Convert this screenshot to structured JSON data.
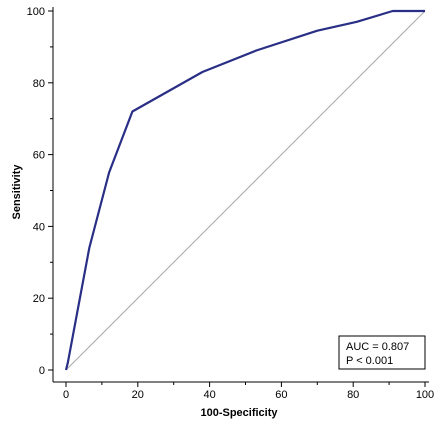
{
  "chart_data": {
    "type": "line",
    "xlabel": "100-Specificity",
    "ylabel": "Sensitivity",
    "xlim": [
      0,
      100
    ],
    "ylim": [
      0,
      100
    ],
    "x_ticks": [
      0,
      20,
      40,
      60,
      80,
      100
    ],
    "y_ticks": [
      0,
      20,
      40,
      60,
      80,
      100
    ],
    "grid": false,
    "series": [
      {
        "color": "#2a2f86",
        "x": [
          0,
          0.5,
          6.5,
          12,
          18.5,
          38,
          53,
          70,
          81,
          91,
          100
        ],
        "y": [
          0,
          2,
          34,
          55,
          72,
          83,
          89,
          94.5,
          97,
          100,
          100
        ]
      }
    ],
    "reference_line": {
      "x": [
        0,
        100
      ],
      "y": [
        0,
        100
      ],
      "color": "#aaaaaa"
    },
    "annotation": {
      "lines": [
        "AUC = 0.807",
        "P < 0.001"
      ],
      "position": "bottom-right"
    }
  }
}
